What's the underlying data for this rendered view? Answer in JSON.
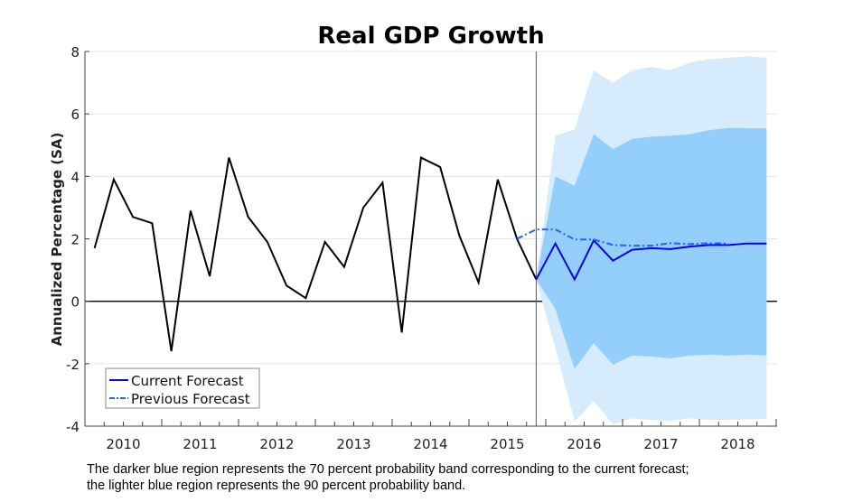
{
  "chart_data": {
    "type": "line",
    "title": "Real GDP Growth",
    "xlabel": "",
    "ylabel": "Annualized Percentage (SA)",
    "ylim": [
      -4,
      8
    ],
    "yticks": [
      "-4",
      "-2",
      "0",
      "2",
      "4",
      "6",
      "8"
    ],
    "xticklabels": [
      "2010",
      "2011",
      "2012",
      "2013",
      "2014",
      "2015",
      "2016",
      "2017",
      "2018"
    ],
    "grid": "horizontal",
    "legend_placement": "bottom-left",
    "x_start_quarter": "2010Q1",
    "history": {
      "values": [
        1.7,
        3.9,
        2.7,
        2.5,
        -1.6,
        2.9,
        0.8,
        4.6,
        2.7,
        1.9,
        0.5,
        0.1,
        1.9,
        1.1,
        3.0,
        3.8,
        -1.0,
        4.6,
        4.3,
        2.1,
        0.6,
        3.9,
        2.0,
        0.7
      ],
      "color": "#000000"
    },
    "forecast_start_quarter": "2015Q4",
    "series": [
      {
        "name": "Current Forecast",
        "start_quarter": "2015Q4",
        "style": "solid",
        "color": "#0000ee",
        "values": [
          0.7,
          1.85,
          0.7,
          1.95,
          1.3,
          1.65,
          1.7,
          1.67,
          1.75,
          1.8,
          1.8,
          1.85,
          1.85
        ]
      },
      {
        "name": "Previous Forecast",
        "start_quarter": "2015Q3",
        "style": "dash-dot",
        "color": "#1a66ff",
        "values": [
          2.0,
          2.3,
          2.3,
          1.98,
          1.98,
          1.8,
          1.78,
          1.78,
          1.86,
          1.83,
          1.86,
          1.85
        ]
      }
    ],
    "bands": [
      {
        "label": "90 percent",
        "color": "#d6ebfc",
        "start_quarter": "2015Q4",
        "upper": [
          0.7,
          5.3,
          5.5,
          7.4,
          7.0,
          7.4,
          7.5,
          7.4,
          7.65,
          7.75,
          7.8,
          7.85,
          7.8
        ],
        "lower": [
          0.7,
          -1.5,
          -3.85,
          -3.2,
          -3.95,
          -3.75,
          -3.8,
          -3.83,
          -3.75,
          -3.8,
          -3.8,
          -3.78,
          -3.77
        ]
      },
      {
        "label": "70 percent",
        "color": "#94cffb",
        "start_quarter": "2015Q4",
        "upper": [
          0.7,
          4.0,
          3.7,
          5.35,
          4.87,
          5.2,
          5.27,
          5.3,
          5.35,
          5.48,
          5.55,
          5.54,
          5.54
        ],
        "lower": [
          0.7,
          -0.25,
          -2.17,
          -1.34,
          -2.03,
          -1.74,
          -1.77,
          -1.83,
          -1.74,
          -1.71,
          -1.74,
          -1.71,
          -1.74
        ]
      }
    ]
  },
  "caption": {
    "line1": "The darker blue region represents the 70 percent probability band corresponding to the current forecast;",
    "line2": "the lighter blue region represents the 90 percent probability band."
  }
}
